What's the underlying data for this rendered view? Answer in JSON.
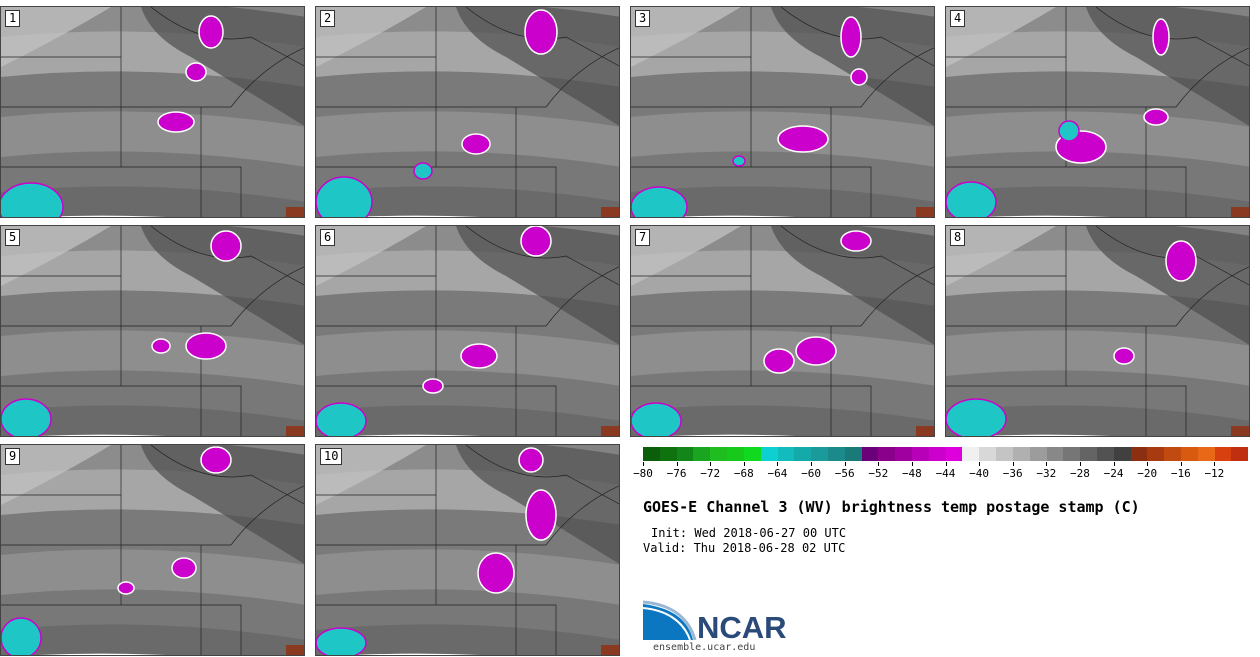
{
  "panels": [
    {
      "label": "1"
    },
    {
      "label": "2"
    },
    {
      "label": "3"
    },
    {
      "label": "4"
    },
    {
      "label": "5"
    },
    {
      "label": "6"
    },
    {
      "label": "7"
    },
    {
      "label": "8"
    },
    {
      "label": "9"
    },
    {
      "label": "10"
    }
  ],
  "colorbar": {
    "colors": [
      "#0b5f0b",
      "#0f720f",
      "#13861a",
      "#19a51f",
      "#1fbd1f",
      "#16c91b",
      "#10d920",
      "#0fd0d0",
      "#12bcbc",
      "#15aaaa",
      "#1a9a9a",
      "#1a8a8a",
      "#1a7a7a",
      "#6a007a",
      "#8a008a",
      "#a000a0",
      "#b800b8",
      "#cc00cc",
      "#dd00dd",
      "#f0f0f0",
      "#d8d8d8",
      "#c4c4c4",
      "#b0b0b0",
      "#9c9c9c",
      "#888888",
      "#767676",
      "#646464",
      "#525252",
      "#404040",
      "#8a3010",
      "#a83a10",
      "#c04a10",
      "#d85a10",
      "#e86818",
      "#d84010",
      "#c03010"
    ],
    "ticks": [
      "−80",
      "−76",
      "−72",
      "−68",
      "−64",
      "−60",
      "−56",
      "−52",
      "−48",
      "−44",
      "−40",
      "−36",
      "−32",
      "−28",
      "−24",
      "−20",
      "−16",
      "−12"
    ]
  },
  "title": "GOES-E Channel 3 (WV) brightness temp postage stamp (C)",
  "init": "Init: Wed 2018-06-27 00 UTC",
  "valid": "Valid: Thu 2018-06-28 02 UTC",
  "logo_text": "NCAR",
  "site": "ensemble.ucar.edu"
}
